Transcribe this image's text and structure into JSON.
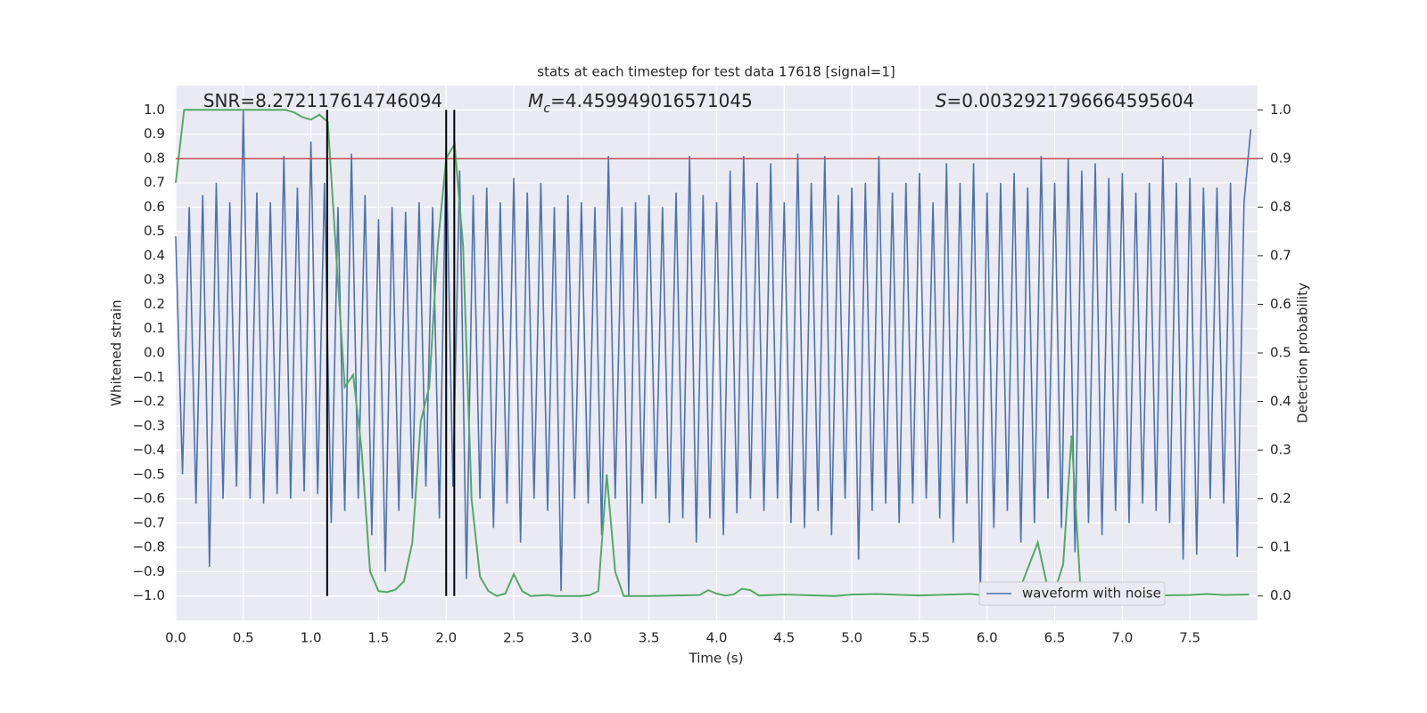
{
  "chart_data": {
    "type": "line",
    "title": "stats at each timestep for test data 17618 [signal=1]",
    "xlabel": "Time (s)",
    "ylabel": "Whitened strain",
    "y2label": "Detection probability",
    "xlim": [
      0,
      8
    ],
    "ylim": [
      -1.1,
      1.1
    ],
    "y2lim": [
      -0.05,
      1.05
    ],
    "xticks": [
      {
        "value": 0,
        "label": "0.0"
      },
      0.5,
      {
        "value": 1,
        "label": "1.0"
      },
      1.5,
      {
        "value": 2,
        "label": "2.0"
      },
      2.5,
      {
        "value": 3,
        "label": "3.0"
      },
      3.5,
      {
        "value": 4,
        "label": "4.0"
      },
      4.5,
      {
        "value": 5,
        "label": "5.0"
      },
      5.5,
      {
        "value": 6,
        "label": "6.0"
      },
      6.5,
      {
        "value": 7,
        "label": "7.0"
      },
      7.5
    ],
    "yticks": [
      {
        "value": 1,
        "label": "1.0"
      },
      0.9,
      0.8,
      0.7,
      0.6,
      0.5,
      0.4,
      0.3,
      0.2,
      0.1,
      {
        "value": 0,
        "label": "0.0"
      },
      {
        "value": -0.1,
        "label": "−0.1"
      },
      {
        "value": -0.2,
        "label": "−0.2"
      },
      {
        "value": -0.3,
        "label": "−0.3"
      },
      {
        "value": -0.4,
        "label": "−0.4"
      },
      {
        "value": -0.5,
        "label": "−0.5"
      },
      {
        "value": -0.6,
        "label": "−0.6"
      },
      {
        "value": -0.7,
        "label": "−0.7"
      },
      {
        "value": -0.8,
        "label": "−0.8"
      },
      {
        "value": -0.9,
        "label": "−0.9"
      },
      {
        "value": -1,
        "label": "−1.0"
      }
    ],
    "y2ticks": [
      {
        "value": 0,
        "label": "0.0"
      },
      0.1,
      0.2,
      0.3,
      0.4,
      0.5,
      0.6,
      0.7,
      0.8,
      0.9,
      {
        "value": 1,
        "label": "1.0"
      }
    ],
    "grid": true,
    "legend": "lower right",
    "threshold": 0.8,
    "threshold_color": "#c44e52",
    "vlines": [
      1.12,
      2.0,
      2.06
    ],
    "vline_span": [
      -1,
      1
    ],
    "vline_color": "#000000",
    "annotations": [
      {
        "text": "SNR=8.272117614746094"
      },
      {
        "symbol": "M",
        "subscript": "c",
        "text": "=4.459949016571045"
      },
      {
        "symbol": "S",
        "text": "=0.0032921796664595604"
      }
    ],
    "series": [
      {
        "name": "waveform with noise",
        "color": "#4c72b0",
        "axis": "y",
        "x": [
          0,
          0.05,
          0.1,
          0.15,
          0.2,
          0.25,
          0.3,
          0.35,
          0.4,
          0.45,
          0.5,
          0.55,
          0.6,
          0.65,
          0.7,
          0.75,
          0.8,
          0.85,
          0.9,
          0.95,
          1,
          1.05,
          1.1,
          1.15,
          1.2,
          1.25,
          1.3,
          1.35,
          1.4,
          1.45,
          1.5,
          1.55,
          1.6,
          1.65,
          1.7,
          1.75,
          1.8,
          1.85,
          1.9,
          1.95,
          2,
          2.05,
          2.1,
          2.15,
          2.2,
          2.25,
          2.3,
          2.35,
          2.4,
          2.45,
          2.5,
          2.55,
          2.6,
          2.65,
          2.7,
          2.75,
          2.8,
          2.85,
          2.9,
          2.95,
          3,
          3.05,
          3.1,
          3.15,
          3.2,
          3.25,
          3.3,
          3.35,
          3.4,
          3.45,
          3.5,
          3.55,
          3.6,
          3.65,
          3.7,
          3.75,
          3.8,
          3.85,
          3.9,
          3.95,
          4,
          4.05,
          4.1,
          4.15,
          4.2,
          4.25,
          4.3,
          4.35,
          4.4,
          4.45,
          4.5,
          4.55,
          4.6,
          4.65,
          4.7,
          4.75,
          4.8,
          4.85,
          4.9,
          4.95,
          5,
          5.05,
          5.1,
          5.15,
          5.2,
          5.25,
          5.3,
          5.35,
          5.4,
          5.45,
          5.5,
          5.55,
          5.6,
          5.65,
          5.7,
          5.75,
          5.8,
          5.85,
          5.9,
          5.95,
          6,
          6.05,
          6.1,
          6.15,
          6.2,
          6.25,
          6.3,
          6.35,
          6.4,
          6.45,
          6.5,
          6.55,
          6.6,
          6.65,
          6.7,
          6.75,
          6.8,
          6.85,
          6.9,
          6.95,
          7,
          7.05,
          7.1,
          7.15,
          7.2,
          7.25,
          7.3,
          7.35,
          7.4,
          7.45,
          7.5,
          7.55,
          7.6,
          7.65,
          7.7,
          7.75,
          7.8,
          7.85,
          7.9,
          7.95
        ],
        "values": [
          0.48,
          -0.5,
          0.6,
          -0.62,
          0.65,
          -0.88,
          0.7,
          -0.6,
          0.62,
          -0.55,
          1.0,
          -0.6,
          0.66,
          -0.62,
          0.62,
          -0.58,
          0.81,
          -0.6,
          0.68,
          -0.57,
          0.87,
          -0.58,
          0.7,
          -0.7,
          0.6,
          -0.65,
          0.82,
          -0.6,
          0.65,
          -0.75,
          0.55,
          -0.9,
          0.6,
          -0.65,
          0.58,
          -0.6,
          0.62,
          -0.55,
          0.6,
          -0.68,
          0.85,
          -0.55,
          0.75,
          -0.93,
          0.65,
          -0.6,
          0.68,
          -0.72,
          0.62,
          -0.62,
          0.72,
          -0.78,
          0.66,
          -0.6,
          0.7,
          -0.65,
          0.6,
          -0.98,
          0.65,
          -0.6,
          0.62,
          -0.62,
          0.6,
          -0.75,
          0.81,
          -0.6,
          0.6,
          -1.0,
          0.62,
          -0.62,
          0.65,
          -0.6,
          0.6,
          -0.7,
          0.66,
          -0.68,
          0.81,
          -0.78,
          0.65,
          -0.68,
          0.62,
          -0.75,
          0.75,
          -0.66,
          0.81,
          -0.6,
          0.7,
          -0.65,
          0.78,
          -0.6,
          0.62,
          -0.7,
          0.82,
          -0.72,
          0.7,
          -0.65,
          0.81,
          -0.75,
          0.65,
          -0.6,
          0.68,
          -0.85,
          0.7,
          -0.65,
          0.81,
          -0.62,
          0.66,
          -0.7,
          0.7,
          -0.62,
          0.74,
          -0.6,
          0.62,
          -0.68,
          0.78,
          -0.78,
          0.7,
          -0.62,
          0.78,
          -1.0,
          0.66,
          -0.72,
          0.7,
          -0.65,
          0.74,
          -0.78,
          0.68,
          -0.7,
          0.81,
          -0.6,
          0.7,
          -0.72,
          0.8,
          -0.82,
          0.75,
          -0.7,
          0.78,
          -0.75,
          0.72,
          -0.65,
          0.74,
          -0.7,
          0.66,
          -0.62,
          0.7,
          -0.65,
          0.81,
          -0.7,
          0.7,
          -0.85,
          0.72,
          -0.83,
          0.68,
          -0.6,
          0.68,
          -0.62,
          0.7,
          -0.84,
          0.62,
          0.92
        ]
      },
      {
        "color": "#55a868",
        "axis": "y2",
        "x": [
          0,
          0.0625,
          0.8125,
          0.875,
          0.9375,
          1,
          1.0625,
          1.125,
          1.1875,
          1.25,
          1.3125,
          1.375,
          1.4375,
          1.5,
          1.5625,
          1.625,
          1.6875,
          1.75,
          1.8125,
          1.875,
          1.9375,
          2,
          2.0625,
          2.125,
          2.1875,
          2.25,
          2.3125,
          2.375,
          2.4375,
          2.5,
          2.5625,
          2.625,
          2.75,
          2.8125,
          3,
          3.0625,
          3.125,
          3.1875,
          3.25,
          3.3125,
          3.5,
          3.875,
          3.9375,
          4,
          4.0625,
          4.125,
          4.1875,
          4.25,
          4.3125,
          4.5,
          4.875,
          5,
          5.1875,
          5.5,
          5.875,
          6,
          6.25,
          6.375,
          6.4375,
          6.5,
          6.5625,
          6.625,
          6.6875,
          6.75,
          6.875,
          7,
          7.5,
          7.625,
          7.75,
          7.9375
        ],
        "values": [
          0.85,
          1.0,
          1.0,
          0.995,
          0.985,
          0.98,
          0.99,
          0.975,
          0.7,
          0.43,
          0.455,
          0.3,
          0.05,
          0.01,
          0.008,
          0.013,
          0.03,
          0.11,
          0.36,
          0.43,
          0.72,
          0.9,
          0.93,
          0.72,
          0.2,
          0.04,
          0.01,
          0.0,
          0.005,
          0.045,
          0.01,
          0.0,
          0.002,
          0.0,
          0.0,
          0.002,
          0.01,
          0.25,
          0.05,
          0.0,
          0.0,
          0.002,
          0.012,
          0.005,
          0.001,
          0.003,
          0.015,
          0.012,
          0.001,
          0.003,
          0.0,
          0.003,
          0.004,
          0.001,
          0.004,
          0.001,
          0.02,
          0.11,
          0.03,
          0.01,
          0.065,
          0.33,
          0.03,
          0.0,
          0.001,
          0.0,
          0.002,
          0.004,
          0.002,
          0.003
        ]
      }
    ]
  }
}
